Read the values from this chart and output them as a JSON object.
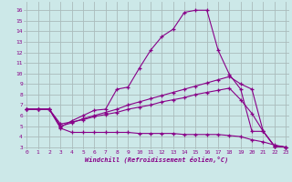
{
  "background_color": "#cce8e8",
  "grid_color": "#aabbbb",
  "line_color": "#880088",
  "marker": "+",
  "xlabel": "Windchill (Refroidissement éolien,°C)",
  "ylim": [
    2.8,
    16.8
  ],
  "xlim": [
    -0.3,
    23.3
  ],
  "yticks": [
    3,
    4,
    5,
    6,
    7,
    8,
    9,
    10,
    11,
    12,
    13,
    14,
    15,
    16
  ],
  "xticks": [
    0,
    1,
    2,
    3,
    4,
    5,
    6,
    7,
    8,
    9,
    10,
    11,
    12,
    13,
    14,
    15,
    16,
    17,
    18,
    19,
    20,
    21,
    22,
    23
  ],
  "series": [
    {
      "x": [
        0,
        1,
        2,
        3,
        4,
        5,
        6,
        7,
        8,
        9,
        10,
        11,
        12,
        13,
        14,
        15,
        16,
        17,
        18,
        19,
        20,
        21,
        22,
        23
      ],
      "y": [
        6.6,
        6.6,
        6.6,
        4.9,
        5.5,
        6.0,
        6.5,
        6.6,
        8.5,
        8.7,
        10.5,
        12.2,
        13.5,
        14.2,
        15.8,
        16.0,
        16.0,
        12.2,
        9.9,
        8.5,
        4.5,
        4.5,
        3.1,
        3.0
      ]
    },
    {
      "x": [
        0,
        1,
        2,
        3,
        4,
        5,
        6,
        7,
        8,
        9,
        10,
        11,
        12,
        13,
        14,
        15,
        16,
        17,
        18,
        19,
        20,
        21,
        22,
        23
      ],
      "y": [
        6.6,
        6.6,
        6.6,
        5.0,
        5.3,
        5.7,
        6.0,
        6.3,
        6.6,
        7.0,
        7.3,
        7.6,
        7.9,
        8.2,
        8.5,
        8.8,
        9.1,
        9.4,
        9.7,
        9.0,
        8.5,
        4.5,
        3.1,
        3.0
      ]
    },
    {
      "x": [
        0,
        1,
        2,
        3,
        4,
        5,
        6,
        7,
        8,
        9,
        10,
        11,
        12,
        13,
        14,
        15,
        16,
        17,
        18,
        19,
        20,
        21,
        22,
        23
      ],
      "y": [
        6.6,
        6.6,
        6.6,
        5.2,
        5.4,
        5.6,
        5.9,
        6.1,
        6.3,
        6.6,
        6.8,
        7.0,
        7.3,
        7.5,
        7.7,
        8.0,
        8.2,
        8.4,
        8.6,
        7.5,
        6.2,
        4.5,
        3.1,
        3.0
      ]
    },
    {
      "x": [
        0,
        1,
        2,
        3,
        4,
        5,
        6,
        7,
        8,
        9,
        10,
        11,
        12,
        13,
        14,
        15,
        16,
        17,
        18,
        19,
        20,
        21,
        22,
        23
      ],
      "y": [
        6.6,
        6.6,
        6.6,
        4.8,
        4.4,
        4.4,
        4.4,
        4.4,
        4.4,
        4.4,
        4.3,
        4.3,
        4.3,
        4.3,
        4.2,
        4.2,
        4.2,
        4.2,
        4.1,
        4.0,
        3.7,
        3.5,
        3.2,
        3.0
      ]
    }
  ]
}
